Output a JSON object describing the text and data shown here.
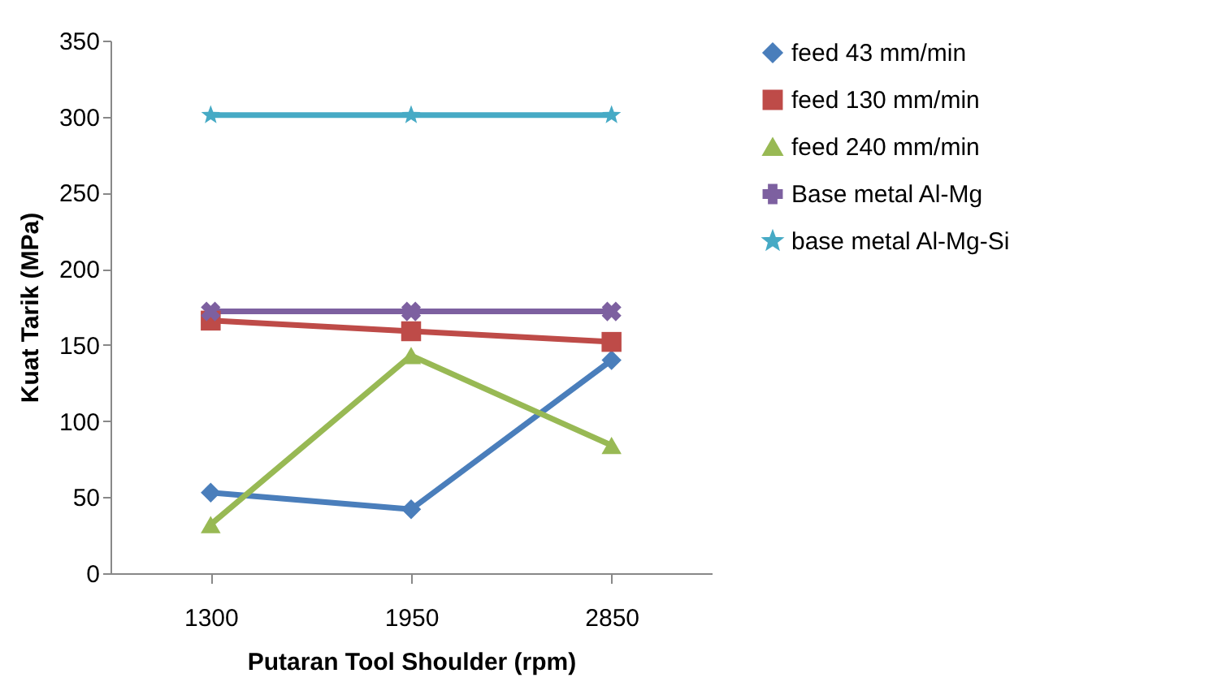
{
  "chart_data": {
    "type": "line",
    "xlabel": "Putaran Tool Shoulder (rpm)",
    "ylabel": "Kuat Tarik (MPa)",
    "categories": [
      "1300",
      "1950",
      "2850"
    ],
    "ylim": [
      0,
      350
    ],
    "yticks": [
      0,
      50,
      100,
      150,
      200,
      250,
      300,
      350
    ],
    "grid": false,
    "legend": "right",
    "series": [
      {
        "name": "feed 43 mm/min",
        "color": "#4a7ebb",
        "marker": "diamond",
        "values": [
          53,
          42,
          140
        ]
      },
      {
        "name": "feed 130 mm/min",
        "color": "#be4b48",
        "marker": "square",
        "values": [
          166,
          159,
          152
        ]
      },
      {
        "name": "feed 240 mm/min",
        "color": "#98b954",
        "marker": "triangle",
        "values": [
          32,
          143,
          84
        ]
      },
      {
        "name": "Base metal Al-Mg",
        "color": "#7d60a0",
        "marker": "cross",
        "values": [
          172,
          172,
          172
        ]
      },
      {
        "name": "base metal Al-Mg-Si",
        "color": "#46aac5",
        "marker": "star",
        "values": [
          301,
          301,
          301
        ]
      }
    ]
  }
}
